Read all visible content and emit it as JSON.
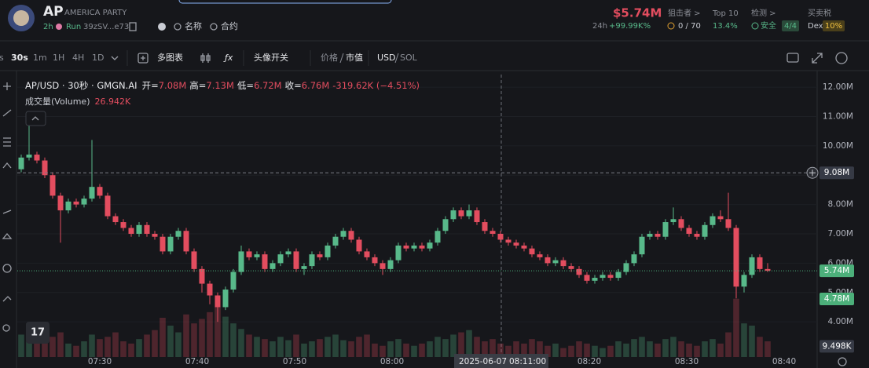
{
  "header": {
    "symbol": "AP",
    "name": "AMERICA PARTY",
    "age": "2h",
    "run": "Run",
    "address": "39zSV...e73",
    "name_button": "名称",
    "contract_button": "合约",
    "price": "$5.74M",
    "change_label": "24h",
    "change": "+99.99K%",
    "stats": [
      {
        "label": "狙击者 >",
        "value": "0 / 70"
      },
      {
        "label": "Top 10",
        "value": "13.4%"
      },
      {
        "label": "检测 >",
        "value": "安全",
        "badge": "4/4"
      },
      {
        "label": "买卖税",
        "value": "Dex",
        "badge": "10%"
      }
    ]
  },
  "toolbar": {
    "intervals": [
      "s",
      "30s",
      "1m",
      "1H",
      "4H",
      "1D"
    ],
    "multi_chart": "多图表",
    "avatar_toggle": "头像开关",
    "price": "价格",
    "market_cap": "市值",
    "usd": "USD",
    "sol": "SOL"
  },
  "legend": {
    "pair": "AP/USD · 30秒 · GMGN.AI",
    "open_label": "开=",
    "open": "7.08M",
    "high_label": "高=",
    "high": "7.13M",
    "low_label": "低=",
    "low": "6.72M",
    "close_label": "收=",
    "close": "6.76M",
    "change": "-319.62K (−4.51%)",
    "volume_label": "成交量(Volume)",
    "volume": "26.942K"
  },
  "time_axis": {
    "labels": [
      "07:30",
      "07:40",
      "07:50",
      "08:00",
      "08:20",
      "08:30",
      "08:40"
    ],
    "crosshair_date": "2025-06-07",
    "crosshair_time": "08:11:00"
  },
  "chart_data": {
    "type": "candlestick",
    "up_color": "#58b98a",
    "down_color": "#e34d5f",
    "grid": true,
    "ylim": [
      2.8,
      12.43
    ],
    "yticks": [
      {
        "value": 4,
        "label": "4.00M"
      },
      {
        "value": 5,
        "label": "5.00M"
      },
      {
        "value": 6,
        "label": "6.00M"
      },
      {
        "value": 7,
        "label": "7.00M"
      },
      {
        "value": 8,
        "label": "8.00M"
      },
      {
        "value": 9,
        "label": "9.00M"
      },
      {
        "value": 10,
        "label": "10.00M"
      },
      {
        "value": 11,
        "label": "11.00M"
      },
      {
        "value": 12,
        "label": "12.00M"
      }
    ],
    "price_markers": [
      {
        "value": 9.08,
        "label": "9.08M",
        "color": "#363a45",
        "line": true
      },
      {
        "value": 5.74,
        "label": "5.74M",
        "color": "#4caf7a",
        "line": true
      },
      {
        "value": 4.78,
        "label": "4.78M",
        "color": "#4caf7a",
        "line": false
      }
    ],
    "vlim": [
      0,
      70
    ],
    "volume_marker": {
      "value": 9.498,
      "label": "9.498K",
      "color": "#363a45"
    },
    "candles": [
      [
        9.2,
        9.7,
        9.1,
        9.6
      ],
      [
        9.6,
        10.7,
        9.5,
        9.7
      ],
      [
        9.7,
        9.8,
        9.4,
        9.5
      ],
      [
        9.5,
        9.6,
        8.9,
        9.0
      ],
      [
        9.0,
        9.1,
        8.2,
        8.3
      ],
      [
        8.3,
        8.4,
        6.7,
        7.8
      ],
      [
        7.8,
        8.2,
        7.7,
        8.1
      ],
      [
        8.1,
        8.2,
        7.9,
        8.0
      ],
      [
        8.0,
        8.3,
        7.9,
        8.2
      ],
      [
        8.2,
        10.2,
        8.1,
        8.6
      ],
      [
        8.6,
        8.7,
        8.2,
        8.3
      ],
      [
        8.3,
        8.4,
        7.5,
        7.6
      ],
      [
        7.6,
        7.7,
        7.3,
        7.4
      ],
      [
        7.4,
        7.5,
        7.1,
        7.2
      ],
      [
        7.2,
        7.3,
        6.9,
        7.0
      ],
      [
        7.0,
        7.4,
        6.9,
        7.3
      ],
      [
        7.3,
        7.4,
        6.9,
        7.0
      ],
      [
        7.0,
        7.1,
        6.8,
        6.9
      ],
      [
        6.9,
        7.0,
        6.3,
        6.4
      ],
      [
        6.4,
        7.0,
        6.3,
        6.9
      ],
      [
        6.9,
        7.2,
        6.8,
        7.1
      ],
      [
        7.1,
        7.2,
        6.3,
        6.4
      ],
      [
        6.4,
        6.5,
        5.7,
        5.8
      ],
      [
        5.8,
        5.9,
        5.0,
        5.3
      ],
      [
        5.3,
        5.4,
        4.6,
        4.9
      ],
      [
        4.9,
        5.0,
        4.0,
        4.5
      ],
      [
        4.5,
        5.2,
        4.4,
        5.1
      ],
      [
        5.1,
        5.8,
        5.0,
        5.7
      ],
      [
        5.7,
        6.6,
        5.6,
        6.4
      ],
      [
        6.4,
        6.5,
        6.1,
        6.2
      ],
      [
        6.2,
        6.4,
        6.1,
        6.3
      ],
      [
        6.3,
        6.4,
        5.7,
        5.8
      ],
      [
        5.8,
        6.1,
        5.7,
        6.0
      ],
      [
        6.0,
        6.4,
        5.9,
        6.3
      ],
      [
        6.3,
        6.5,
        6.2,
        6.4
      ],
      [
        6.4,
        6.5,
        5.7,
        5.8
      ],
      [
        5.8,
        6.0,
        5.6,
        5.9
      ],
      [
        5.9,
        6.4,
        5.8,
        6.3
      ],
      [
        6.3,
        6.4,
        6.1,
        6.2
      ],
      [
        6.2,
        6.7,
        6.1,
        6.6
      ],
      [
        6.6,
        7.0,
        6.5,
        6.9
      ],
      [
        6.9,
        7.2,
        6.8,
        7.1
      ],
      [
        7.1,
        7.2,
        6.7,
        6.8
      ],
      [
        6.8,
        6.9,
        6.3,
        6.4
      ],
      [
        6.4,
        6.5,
        6.1,
        6.2
      ],
      [
        6.2,
        6.3,
        5.9,
        6.0
      ],
      [
        6.0,
        6.1,
        5.6,
        5.8
      ],
      [
        5.8,
        6.2,
        5.7,
        6.1
      ],
      [
        6.1,
        6.7,
        6.0,
        6.6
      ],
      [
        6.6,
        6.7,
        6.4,
        6.5
      ],
      [
        6.5,
        6.7,
        6.4,
        6.6
      ],
      [
        6.6,
        6.7,
        6.4,
        6.5
      ],
      [
        6.5,
        6.8,
        6.4,
        6.7
      ],
      [
        6.7,
        7.2,
        6.6,
        7.1
      ],
      [
        7.1,
        7.6,
        7.0,
        7.5
      ],
      [
        7.5,
        7.9,
        7.4,
        7.8
      ],
      [
        7.8,
        7.9,
        7.5,
        7.6
      ],
      [
        7.6,
        8.0,
        7.5,
        7.8
      ],
      [
        7.8,
        7.9,
        7.3,
        7.4
      ],
      [
        7.4,
        7.5,
        7.0,
        7.1
      ],
      [
        7.1,
        7.2,
        6.9,
        7.0
      ],
      [
        7.0,
        7.1,
        6.7,
        6.8
      ],
      [
        6.8,
        6.9,
        6.6,
        6.7
      ],
      [
        6.7,
        6.8,
        6.5,
        6.6
      ],
      [
        6.6,
        6.7,
        6.4,
        6.5
      ],
      [
        6.5,
        6.6,
        6.2,
        6.3
      ],
      [
        6.3,
        6.4,
        6.1,
        6.2
      ],
      [
        6.2,
        6.3,
        5.9,
        6.0
      ],
      [
        6.0,
        6.2,
        5.9,
        6.1
      ],
      [
        6.1,
        6.2,
        5.8,
        5.9
      ],
      [
        5.9,
        6.0,
        5.7,
        5.8
      ],
      [
        5.8,
        5.9,
        5.5,
        5.6
      ],
      [
        5.6,
        5.7,
        5.3,
        5.4
      ],
      [
        5.4,
        5.6,
        5.3,
        5.5
      ],
      [
        5.5,
        5.7,
        5.4,
        5.6
      ],
      [
        5.6,
        5.7,
        5.4,
        5.5
      ],
      [
        5.5,
        5.8,
        5.4,
        5.7
      ],
      [
        5.7,
        6.1,
        5.6,
        6.0
      ],
      [
        6.0,
        6.4,
        5.9,
        6.3
      ],
      [
        6.3,
        7.0,
        6.2,
        6.9
      ],
      [
        6.9,
        7.1,
        6.8,
        7.0
      ],
      [
        7.0,
        7.1,
        6.8,
        6.9
      ],
      [
        6.9,
        7.5,
        6.8,
        7.4
      ],
      [
        7.4,
        7.9,
        7.3,
        7.5
      ],
      [
        7.5,
        7.6,
        7.1,
        7.2
      ],
      [
        7.2,
        7.3,
        6.9,
        7.0
      ],
      [
        7.0,
        7.1,
        6.8,
        6.9
      ],
      [
        6.9,
        7.4,
        6.8,
        7.3
      ],
      [
        7.3,
        7.7,
        7.2,
        7.6
      ],
      [
        7.6,
        7.8,
        7.4,
        7.5
      ],
      [
        7.5,
        8.4,
        7.1,
        7.2
      ],
      [
        7.2,
        7.3,
        4.8,
        5.2
      ],
      [
        5.2,
        5.7,
        5.0,
        5.6
      ],
      [
        5.6,
        6.3,
        5.5,
        6.2
      ],
      [
        6.2,
        6.3,
        5.7,
        5.8
      ],
      [
        5.8,
        6.0,
        5.7,
        5.74
      ]
    ],
    "volumes": [
      20,
      30,
      25,
      15,
      18,
      22,
      12,
      10,
      14,
      20,
      16,
      18,
      22,
      14,
      12,
      16,
      20,
      24,
      35,
      28,
      22,
      38,
      30,
      34,
      40,
      45,
      36,
      30,
      25,
      20,
      18,
      16,
      14,
      18,
      15,
      20,
      12,
      14,
      16,
      18,
      20,
      15,
      14,
      18,
      20,
      12,
      10,
      14,
      16,
      12,
      10,
      12,
      14,
      18,
      16,
      20,
      22,
      24,
      18,
      14,
      16,
      12,
      10,
      14,
      12,
      16,
      14,
      10,
      12,
      8,
      10,
      14,
      12,
      10,
      8,
      10,
      14,
      12,
      16,
      18,
      14,
      12,
      16,
      18,
      14,
      12,
      10,
      14,
      16,
      12,
      22,
      52,
      30,
      28,
      18,
      14
    ]
  }
}
